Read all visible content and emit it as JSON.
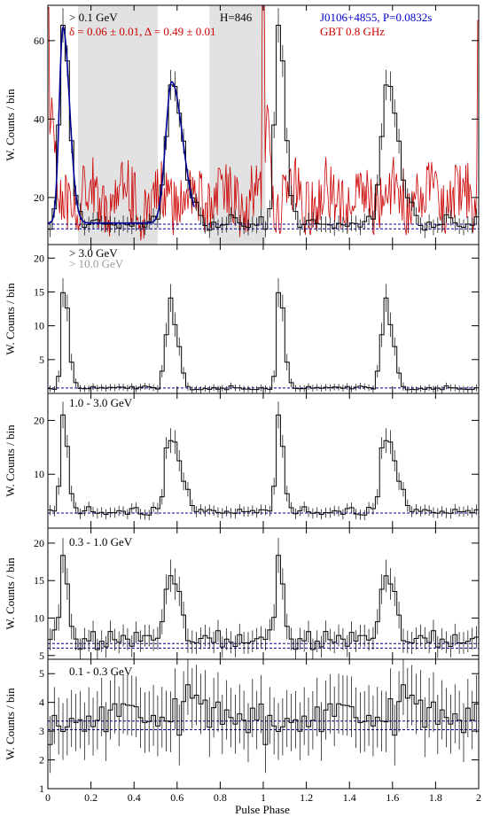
{
  "figure": {
    "xlabel": "Pulse Phase",
    "ylabel": "W. Counts / bin",
    "x_range": [
      0,
      2
    ],
    "x_ticks": [
      "0",
      "0.2",
      "0.4",
      "0.6",
      "0.8",
      "1",
      "1.2",
      "1.4",
      "1.6",
      "1.8",
      "2"
    ]
  },
  "chart_data": [
    {
      "type": "line",
      "panel": "> 0.1 GeV",
      "labels": {
        "energy": "> 0.1 GeV",
        "htest": "H=846",
        "fit": "δ = 0.06 ± 0.01, Δ = 0.49 ± 0.01",
        "pulsar": "J0106+4855, P=0.0832s",
        "radio": "GBT 0.8 GHz"
      },
      "ylim": [
        8,
        69
      ],
      "yticks": [
        20,
        40,
        60
      ],
      "background_levels": [
        12.0,
        13.2
      ],
      "shaded_phase_intervals": [
        [
          0.14,
          0.51
        ],
        [
          0.75,
          1.01
        ]
      ],
      "peaks": [
        {
          "center": 0.07,
          "height": 50,
          "width": 0.017
        },
        {
          "center": 0.575,
          "height": 36,
          "width": 0.028
        }
      ],
      "baseline": 13.5,
      "series": [
        {
          "name": "gamma-ray histogram",
          "color": "#000000"
        },
        {
          "name": "two-peak fit",
          "color": "#000099"
        },
        {
          "name": "GBT 0.8 GHz",
          "color": "#cc0000"
        }
      ]
    },
    {
      "type": "line",
      "panel": "> 3.0 GeV",
      "labels": {
        "energy": "> 3.0 GeV",
        "energy2": "> 10.0 GeV"
      },
      "ylim": [
        0,
        22
      ],
      "yticks": [
        5,
        10,
        15,
        20
      ],
      "background_levels": [
        0.8
      ],
      "peaks": [
        {
          "center": 0.075,
          "height": 15.5,
          "width": 0.012
        },
        {
          "center": 0.565,
          "height": 13.5,
          "width": 0.018
        }
      ],
      "baseline": 0.8,
      "series": [
        {
          "name": "histogram",
          "color": "#000000"
        }
      ]
    },
    {
      "type": "line",
      "panel": "1.0 - 3.0 GeV",
      "labels": {
        "energy": "1.0 - 3.0 GeV"
      },
      "ylim": [
        0,
        25
      ],
      "yticks": [
        10,
        20
      ],
      "background_levels": [
        2.8
      ],
      "peaks": [
        {
          "center": 0.07,
          "height": 17.5,
          "width": 0.013
        },
        {
          "center": 0.57,
          "height": 14.5,
          "width": 0.025
        }
      ],
      "baseline": 3.0,
      "series": [
        {
          "name": "histogram",
          "color": "#000000"
        }
      ]
    },
    {
      "type": "line",
      "panel": "0.3 - 1.0 GeV",
      "labels": {
        "energy": "0.3 - 1.0 GeV"
      },
      "ylim": [
        4.5,
        22
      ],
      "yticks": [
        5,
        10,
        15,
        20
      ],
      "background_levels": [
        6.0,
        6.6
      ],
      "peaks": [
        {
          "center": 0.07,
          "height": 11,
          "width": 0.013
        },
        {
          "center": 0.57,
          "height": 8.5,
          "width": 0.025
        }
      ],
      "baseline": 7.0,
      "series": [
        {
          "name": "histogram",
          "color": "#000000"
        }
      ]
    },
    {
      "type": "line",
      "panel": "0.1 - 0.3 GeV",
      "labels": {
        "energy": "0.1 - 0.3 GeV"
      },
      "ylim": [
        1,
        5.5
      ],
      "yticks": [
        1,
        2,
        3,
        4,
        5
      ],
      "background_levels": [
        3.05,
        3.35
      ],
      "peaks": [
        {
          "center": 0.5,
          "height": 0.5,
          "width": 0.2
        }
      ],
      "baseline": 3.2,
      "series": [
        {
          "name": "histogram",
          "color": "#000000"
        }
      ]
    }
  ]
}
